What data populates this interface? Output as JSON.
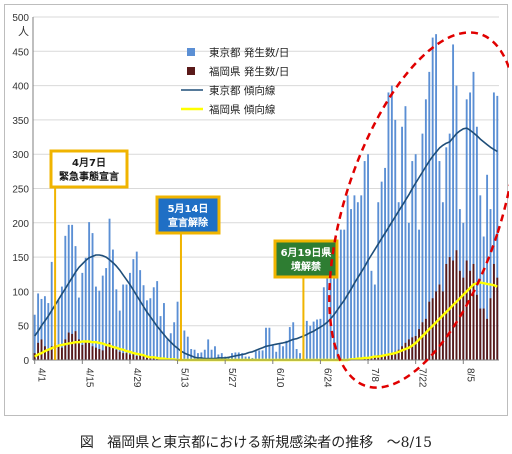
{
  "chart_data": {
    "type": "bar",
    "ylabel": "人",
    "ylim": [
      0,
      500
    ],
    "yticks": [
      0,
      50,
      100,
      150,
      200,
      250,
      300,
      350,
      400,
      450,
      500
    ],
    "x_tick_labels": [
      "4/1",
      "4/15",
      "4/29",
      "5/13",
      "5/27",
      "6/10",
      "6/24",
      "7/8",
      "7/22",
      "8/5"
    ],
    "x_tick_days": [
      0,
      14,
      28,
      42,
      56,
      70,
      84,
      98,
      112,
      126
    ],
    "day_count": 137,
    "colors": {
      "tokyo_bar": "#5b8fd4",
      "fukuoka_bar": "#5a1a1a",
      "tokyo_trend": "#1f4e79",
      "fukuoka_trend": "#ffff00",
      "callout_border": "#f0b400",
      "callout_fill": "#ffffff",
      "callout_fill_blue": "#1f6fc5",
      "callout_fill_green": "#2e7d32",
      "highlight": "#e00000",
      "axis": "#7f7f7f"
    },
    "series": [
      {
        "name": "東京都 発生数/日",
        "type": "bar",
        "values": [
          66,
          97,
          89,
          93,
          83,
          143,
          80,
          87,
          107,
          181,
          197,
          197,
          166,
          91,
          127,
          149,
          201,
          185,
          107,
          101,
          123,
          134,
          206,
          161,
          103,
          72,
          110,
          110,
          127,
          147,
          158,
          131,
          109,
          87,
          90,
          106,
          115,
          64,
          83,
          30,
          39,
          55,
          85,
          27,
          43,
          34,
          16,
          15,
          10,
          11,
          15,
          30,
          15,
          20,
          8,
          10,
          5,
          3,
          10,
          11,
          11,
          10,
          5,
          5,
          3,
          13,
          14,
          14,
          47,
          47,
          22,
          12,
          24,
          20,
          28,
          48,
          55,
          16,
          10,
          41,
          57,
          50,
          56,
          59,
          60,
          106,
          124,
          140,
          130,
          150,
          190,
          190,
          240,
          220,
          240,
          230,
          240,
          290,
          300,
          130,
          110,
          230,
          260,
          280,
          390,
          400,
          350,
          230,
          340,
          370,
          200,
          290,
          300,
          190,
          330,
          380,
          420,
          470,
          475,
          290,
          230,
          310,
          330,
          460,
          400,
          220,
          200,
          380,
          390,
          420,
          340,
          240,
          180,
          270,
          220,
          390,
          385
        ]
      },
      {
        "name": "福岡県 発生数/日",
        "type": "bar",
        "values": [
          10,
          25,
          30,
          20,
          15,
          20,
          25,
          22,
          18,
          30,
          40,
          38,
          42,
          30,
          22,
          28,
          25,
          20,
          18,
          16,
          14,
          20,
          25,
          18,
          15,
          12,
          10,
          10,
          8,
          10,
          6,
          8,
          6,
          4,
          3,
          3,
          2,
          2,
          3,
          1,
          1,
          0,
          0,
          0,
          0,
          0,
          0,
          0,
          0,
          0,
          0,
          0,
          0,
          0,
          0,
          0,
          0,
          0,
          0,
          0,
          0,
          0,
          0,
          0,
          0,
          0,
          0,
          0,
          0,
          0,
          0,
          0,
          0,
          0,
          0,
          0,
          0,
          0,
          0,
          0,
          0,
          0,
          0,
          0,
          0,
          0,
          0,
          0,
          0,
          0,
          0,
          0,
          0,
          0,
          2,
          1,
          2,
          3,
          3,
          4,
          5,
          7,
          6,
          8,
          9,
          10,
          12,
          15,
          20,
          25,
          30,
          33,
          35,
          45,
          55,
          60,
          85,
          90,
          100,
          110,
          100,
          140,
          150,
          145,
          160,
          130,
          120,
          145,
          130,
          140,
          95,
          75,
          75,
          60,
          90,
          140,
          120
        ]
      },
      {
        "name": "東京都 傾向線",
        "type": "line",
        "values": [
          35,
          42,
          50,
          57,
          64,
          72,
          80,
          88,
          96,
          104,
          112,
          120,
          128,
          135,
          140,
          145,
          149,
          151,
          153,
          153,
          152,
          150,
          146,
          142,
          137,
          131,
          124,
          117,
          110,
          102,
          94,
          86,
          78,
          70,
          63,
          56,
          49,
          43,
          37,
          31,
          26,
          21,
          17,
          13,
          10,
          8,
          6,
          4,
          3,
          3,
          2,
          2,
          2,
          2,
          3,
          3,
          3,
          4,
          5,
          6,
          7,
          8,
          9,
          11,
          12,
          14,
          16,
          18,
          20,
          21,
          22,
          23,
          24,
          25,
          26,
          28,
          30,
          31,
          33,
          35,
          37,
          40,
          42,
          45,
          48,
          51,
          55,
          60,
          66,
          73,
          80,
          87,
          95,
          103,
          112,
          120,
          128,
          136,
          145,
          153,
          161,
          169,
          177,
          185,
          193,
          201,
          209,
          217,
          225,
          233,
          241,
          250,
          258,
          266,
          274,
          282,
          290,
          297,
          303,
          309,
          313,
          316,
          318,
          324,
          330,
          334,
          337,
          338,
          335,
          331,
          327,
          322,
          318,
          314,
          310,
          307,
          304
        ]
      },
      {
        "name": "福岡県 傾向線",
        "type": "line",
        "values": [
          5,
          8,
          10,
          13,
          15,
          17,
          19,
          21,
          22,
          23,
          24,
          25,
          26,
          26,
          27,
          27,
          27,
          26,
          26,
          25,
          24,
          22,
          21,
          19,
          18,
          16,
          15,
          13,
          12,
          10,
          9,
          8,
          7,
          5,
          4,
          4,
          3,
          2,
          2,
          1,
          1,
          1,
          0,
          0,
          0,
          0,
          0,
          0,
          0,
          0,
          0,
          0,
          0,
          0,
          0,
          0,
          0,
          0,
          0,
          0,
          0,
          0,
          0,
          0,
          0,
          0,
          0,
          0,
          0,
          0,
          0,
          0,
          0,
          0,
          0,
          0,
          0,
          0,
          0,
          0,
          0,
          0,
          0,
          0,
          0,
          0,
          0,
          0,
          0,
          0,
          0,
          0,
          0,
          1,
          1,
          2,
          2,
          3,
          3,
          4,
          5,
          5,
          6,
          7,
          8,
          9,
          10,
          12,
          14,
          16,
          18,
          21,
          25,
          30,
          35,
          40,
          45,
          50,
          55,
          60,
          65,
          70,
          75,
          80,
          85,
          90,
          95,
          100,
          105,
          110,
          112,
          113,
          112,
          111,
          110,
          109,
          107
        ]
      }
    ],
    "legend": {
      "placement": "top-right",
      "items": [
        {
          "label": "東京都 発生数/日",
          "kind": "bar",
          "color": "#5b8fd4"
        },
        {
          "label": "福岡県 発生数/日",
          "kind": "bar",
          "color": "#5a1a1a"
        },
        {
          "label": "東京都 傾向線",
          "kind": "line",
          "color": "#1f4e79"
        },
        {
          "label": "福岡県 傾向線",
          "kind": "line",
          "color": "#ffff00"
        }
      ]
    },
    "annotations": [
      {
        "lines": [
          "4月7日",
          "緊急事態宣言"
        ],
        "day": 6,
        "style": "white"
      },
      {
        "lines": [
          "5月14日",
          "宣言解除"
        ],
        "day": 43,
        "style": "blue"
      },
      {
        "lines": [
          "6月19日県",
          "境解禁"
        ],
        "day": 79,
        "style": "green"
      }
    ],
    "highlight_region": "ellipse around 7/8 – 8/15"
  },
  "caption": {
    "prefix": "図",
    "text": "福岡県と東京都における新規感染者の推移",
    "suffix": "～8/15"
  }
}
